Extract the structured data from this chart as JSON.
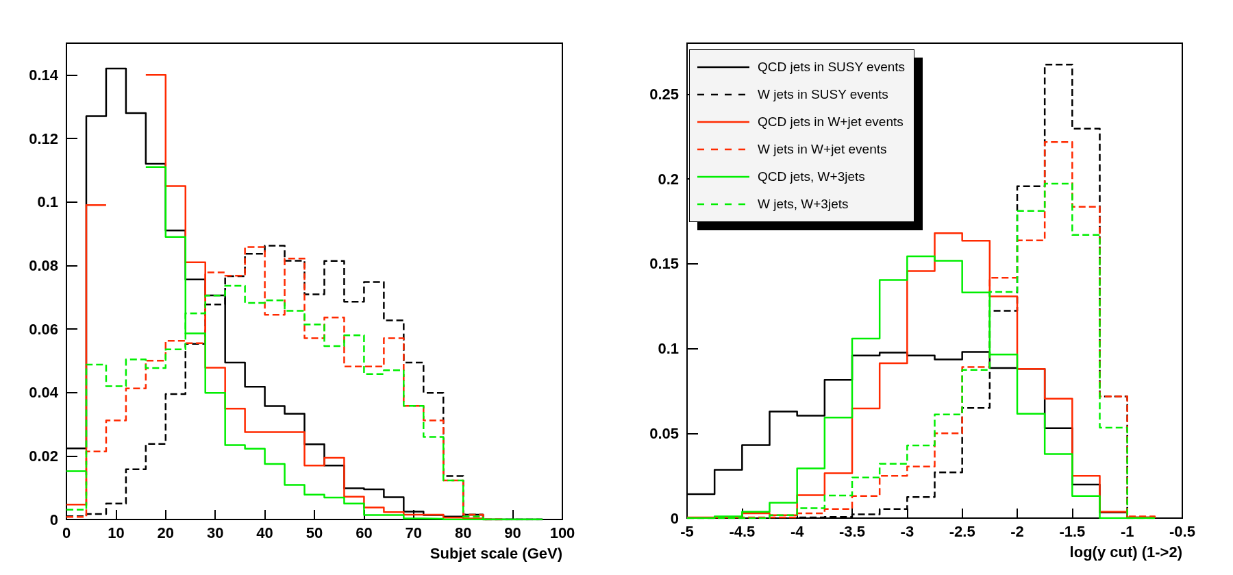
{
  "chart_data": [
    {
      "type": "step",
      "xlabel": "Subjet scale (GeV)",
      "xlim": [
        0,
        100
      ],
      "xticks": [
        0,
        10,
        20,
        30,
        40,
        50,
        60,
        70,
        80,
        90,
        100
      ],
      "ylim": [
        0,
        0.15
      ],
      "yticks": [
        0,
        0.02,
        0.04,
        0.06,
        0.08,
        0.1,
        0.12,
        0.14
      ],
      "grid": false,
      "legend": false,
      "x": [
        0,
        4,
        8,
        12,
        16,
        20,
        24,
        28,
        32,
        36,
        40,
        44,
        48,
        52,
        56,
        60,
        64,
        68,
        72,
        76,
        80,
        84,
        88,
        92,
        96
      ],
      "series": [
        {
          "color": "#000000",
          "line_style": "solid",
          "values": [
            0.0224,
            0.127,
            0.142,
            0.128,
            0.112,
            0.091,
            0.0756,
            0.0706,
            0.0494,
            0.0418,
            0.0357,
            0.0333,
            0.0237,
            0.017,
            0.0098,
            0.0095,
            0.007,
            0.0025,
            0.0014,
            0.0009,
            0.0015,
            0,
            0,
            0,
            0
          ]
        },
        {
          "color": "#000000",
          "line_style": "dashed",
          "values": [
            0.001,
            0.0017,
            0.005,
            0.0158,
            0.0238,
            0.0395,
            0.0553,
            0.0677,
            0.0766,
            0.0837,
            0.0862,
            0.0815,
            0.0709,
            0.0814,
            0.0686,
            0.0748,
            0.0627,
            0.0494,
            0.0399,
            0.0137,
            0.0015,
            0,
            0,
            0,
            0
          ]
        },
        {
          "color": "#ff2a00",
          "line_style": "solid",
          "values": [
            0.0047,
            0.099,
            null,
            null,
            0.14,
            0.105,
            0.081,
            0.0478,
            0.0349,
            0.0275,
            0.0275,
            0.0275,
            0.017,
            0.0194,
            0.0072,
            0.0038,
            0.0023,
            0.0015,
            0.0015,
            0.0006,
            0.0003,
            0,
            0,
            null,
            null
          ]
        },
        {
          "color": "#ff2a00",
          "line_style": "dashed",
          "values": [
            0.0008,
            0.0214,
            0.0312,
            0.0413,
            0.05,
            0.0563,
            0.0555,
            0.0778,
            0.0768,
            0.0858,
            0.0645,
            0.0822,
            0.0571,
            0.0636,
            0.0482,
            0.0482,
            0.0571,
            0.0358,
            0.0312,
            0.0123,
            0.0015,
            0,
            0,
            null,
            null
          ]
        },
        {
          "color": "#00ee00",
          "line_style": "solid",
          "values": [
            0.0152,
            null,
            null,
            null,
            0.111,
            0.089,
            0.0586,
            0.0399,
            0.0234,
            0.0223,
            0.0175,
            0.0109,
            0.0078,
            0.0069,
            0.005,
            0.0014,
            0.0014,
            0.0003,
            0.0002,
            0,
            0,
            0,
            0,
            0,
            0
          ]
        },
        {
          "color": "#00ee00",
          "line_style": "dashed",
          "values": [
            0.0031,
            0.0488,
            0.042,
            0.0504,
            0.0477,
            0.0536,
            0.0649,
            0.0705,
            0.0736,
            0.0682,
            0.069,
            0.0657,
            0.0614,
            0.0546,
            0.058,
            0.0458,
            0.047,
            0.0358,
            0.026,
            0.0123,
            0.0009,
            0,
            0,
            0,
            0
          ]
        }
      ]
    },
    {
      "type": "step",
      "xlabel": "log(y cut) (1->2)",
      "xlim": [
        -5,
        -0.5
      ],
      "xticks": [
        -5,
        -4.5,
        -4,
        -3.5,
        -3,
        -2.5,
        -2,
        -1.5,
        -1,
        -0.5
      ],
      "ylim": [
        0,
        0.28
      ],
      "yticks": [
        0,
        0.05,
        0.1,
        0.15,
        0.2,
        0.25
      ],
      "grid": false,
      "legend": "top left",
      "x": [
        -5,
        -4.75,
        -4.5,
        -4.25,
        -4,
        -3.75,
        -3.5,
        -3.25,
        -3,
        -2.75,
        -2.5,
        -2.25,
        -2,
        -1.75,
        -1.5,
        -1.25,
        -1,
        -0.75
      ],
      "series": [
        {
          "name": "QCD jets in SUSY events",
          "color": "#000000",
          "line_style": "solid",
          "values": [
            0.0141,
            0.0285,
            0.043,
            0.0628,
            0.0604,
            0.0815,
            0.0959,
            0.0976,
            0.0959,
            0.0935,
            0.098,
            0.0885,
            0.088,
            0.053,
            0.0198,
            0.0033,
            0.0004,
            0
          ]
        },
        {
          "name": "W jets in SUSY events",
          "color": "#000000",
          "line_style": "dashed",
          "values": [
            0,
            0,
            0,
            0,
            0.0004,
            0.0007,
            0.0022,
            0.0054,
            0.0124,
            0.027,
            0.065,
            0.1222,
            0.1957,
            0.2674,
            0.2296,
            0.0717,
            0,
            0
          ]
        },
        {
          "name": "QCD jets in W+jet events",
          "color": "#ff2a00",
          "line_style": "solid",
          "values": [
            0.0004,
            0.0004,
            0.0028,
            0.0017,
            0.0135,
            0.0265,
            0.0646,
            0.0913,
            0.1457,
            0.168,
            0.1635,
            0.1307,
            0.088,
            0.0704,
            0.025,
            0.0037,
            0.0004,
            0
          ]
        },
        {
          "name": "W jets in W+jet events",
          "color": "#ff2a00",
          "line_style": "dashed",
          "values": [
            0,
            0,
            0.0004,
            0.0004,
            0.0028,
            0.0054,
            0.013,
            0.025,
            0.0304,
            0.05,
            0.0891,
            0.1417,
            0.1637,
            0.2217,
            0.1835,
            0.0717,
            0.001,
            0
          ]
        },
        {
          "name": "QCD jets, W+3jets",
          "color": "#00ee00",
          "line_style": "solid",
          "values": [
            0,
            0.001,
            0.0037,
            0.0091,
            0.0293,
            0.0593,
            0.1059,
            0.1404,
            0.1543,
            0.1517,
            0.133,
            0.0965,
            0.0615,
            0.0378,
            0.013,
            0,
            0,
            0
          ]
        },
        {
          "name": "W jets, W+3jets",
          "color": "#00ee00",
          "line_style": "dashed",
          "values": [
            0,
            0,
            0,
            0.0017,
            0.0059,
            0.0133,
            0.0239,
            0.032,
            0.0428,
            0.0611,
            0.0874,
            0.1333,
            0.1811,
            0.1972,
            0.167,
            0.0533,
            0,
            0
          ]
        }
      ]
    }
  ]
}
